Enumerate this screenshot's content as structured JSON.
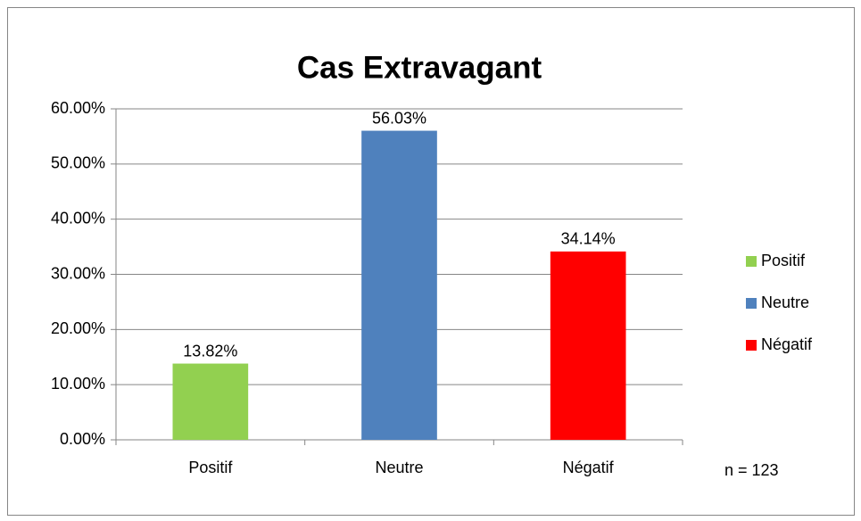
{
  "chart_data": {
    "type": "bar",
    "title": "Cas Extravagant",
    "categories": [
      "Positif",
      "Neutre",
      "Négatif"
    ],
    "values": [
      13.82,
      56.03,
      34.14
    ],
    "value_labels": [
      "13.82%",
      "56.03%",
      "34.14%"
    ],
    "colors": [
      "#92d050",
      "#4f81bd",
      "#ff0000"
    ],
    "ylim": [
      0,
      60
    ],
    "yticks": [
      {
        "value": 0,
        "label": "0.00%"
      },
      {
        "value": 10,
        "label": "10.00%"
      },
      {
        "value": 20,
        "label": "20.00%"
      },
      {
        "value": 30,
        "label": "30.00%"
      },
      {
        "value": 40,
        "label": "40.00%"
      },
      {
        "value": 50,
        "label": "50.00%"
      },
      {
        "value": 60,
        "label": "60.00%"
      }
    ],
    "grid": true,
    "legend": "right",
    "annotation": "n = 123"
  }
}
